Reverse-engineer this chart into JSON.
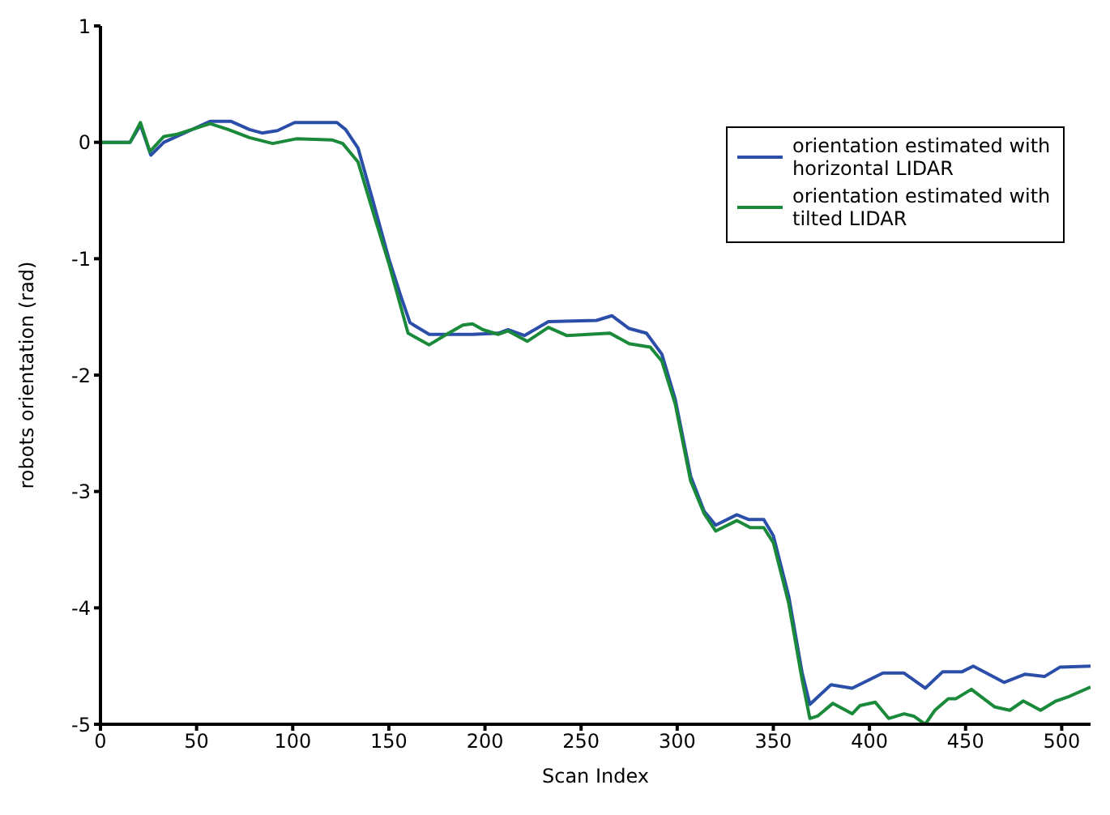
{
  "chart_data": {
    "type": "line",
    "xlabel": "Scan Index",
    "ylabel": "robots orientation (rad)",
    "xlim": [
      0,
      515
    ],
    "xticks": [
      0,
      50,
      100,
      150,
      200,
      250,
      300,
      350,
      400,
      450,
      500
    ],
    "ylim": [
      -5,
      1
    ],
    "yticks": [
      -5,
      -4,
      -3,
      -2,
      -1,
      0,
      1
    ],
    "grid": false,
    "legend": "top right",
    "marker": "none",
    "line_style": "solid",
    "series": [
      {
        "name": "orientation estimated with horizontal LIDAR",
        "color": "#2b4fa8",
        "x": [
          0,
          15.4,
          20.8,
          26.2,
          33,
          45,
          57,
          68,
          77.5,
          84,
          92,
          101,
          123,
          127.5,
          134,
          142,
          150,
          156,
          161,
          171,
          193.5,
          207,
          212,
          220.5,
          233,
          258,
          266,
          275,
          284,
          292,
          299,
          307,
          314,
          320,
          331,
          337,
          345,
          350,
          358,
          365,
          369,
          380,
          391,
          407,
          418,
          429,
          438,
          448,
          454,
          470,
          481,
          491,
          499,
          515
        ],
        "values": [
          0,
          0,
          0.15,
          -0.11,
          0,
          0.09,
          0.18,
          0.18,
          0.11,
          0.08,
          0.1,
          0.17,
          0.17,
          0.11,
          -0.05,
          -0.52,
          -1.0,
          -1.31,
          -1.55,
          -1.65,
          -1.65,
          -1.64,
          -1.61,
          -1.66,
          -1.54,
          -1.53,
          -1.49,
          -1.6,
          -1.64,
          -1.82,
          -2.21,
          -2.87,
          -3.17,
          -3.29,
          -3.2,
          -3.24,
          -3.24,
          -3.38,
          -3.9,
          -4.56,
          -4.83,
          -4.66,
          -4.69,
          -4.56,
          -4.56,
          -4.69,
          -4.55,
          -4.55,
          -4.5,
          -4.64,
          -4.57,
          -4.59,
          -4.51,
          -4.5
        ]
      },
      {
        "name": "orientation estimated with tilted LIDAR",
        "color": "#1a8a3a",
        "x": [
          0,
          15.4,
          20.8,
          25.7,
          33,
          40,
          57,
          66.5,
          77.5,
          89.6,
          101.8,
          120.6,
          126,
          134,
          142,
          150,
          160,
          171,
          180,
          188.5,
          193.5,
          199,
          207,
          212,
          222,
          233,
          242.5,
          265,
          275,
          286,
          292,
          299,
          307,
          314,
          320,
          331,
          338,
          345,
          350,
          358,
          365,
          369,
          373,
          381,
          391,
          395,
          403,
          410,
          418,
          423,
          429,
          434,
          441,
          445,
          453,
          465,
          473,
          480,
          489,
          497,
          504,
          515
        ],
        "values": [
          0,
          0,
          0.17,
          -0.08,
          0.05,
          0.07,
          0.16,
          0.11,
          0.04,
          -0.01,
          0.03,
          0.02,
          -0.01,
          -0.17,
          -0.61,
          -1.04,
          -1.64,
          -1.74,
          -1.65,
          -1.57,
          -1.56,
          -1.61,
          -1.65,
          -1.62,
          -1.71,
          -1.59,
          -1.66,
          -1.64,
          -1.73,
          -1.76,
          -1.88,
          -2.25,
          -2.91,
          -3.19,
          -3.34,
          -3.25,
          -3.31,
          -3.31,
          -3.44,
          -3.96,
          -4.62,
          -4.95,
          -4.93,
          -4.82,
          -4.91,
          -4.84,
          -4.81,
          -4.95,
          -4.91,
          -4.93,
          -5.0,
          -4.88,
          -4.78,
          -4.78,
          -4.7,
          -4.85,
          -4.88,
          -4.8,
          -4.88,
          -4.8,
          -4.76,
          -4.68
        ]
      }
    ]
  }
}
